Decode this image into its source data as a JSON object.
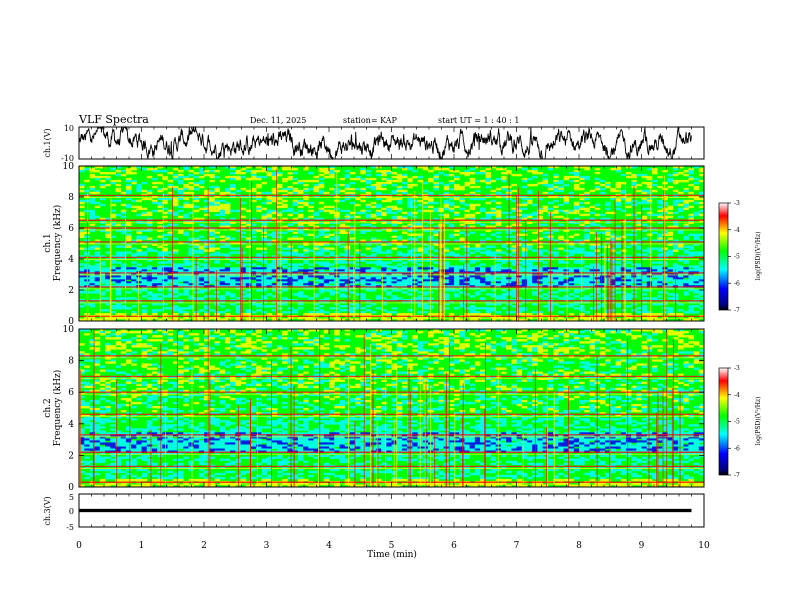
{
  "header": {
    "title": "VLF Spectra",
    "date": "Dec. 11, 2025",
    "station": "station= KAP",
    "start": "start  UT =   1 : 40 : 1"
  },
  "colors": {
    "high": "#ff0000",
    "mid_high": "#ffff00",
    "mid": "#00ff00",
    "mid_low": "#00ffff",
    "low": "#0000ff"
  },
  "chart_data": [
    {
      "type": "line",
      "name": "ch1-waveform",
      "ylabel": "ch.1(V)",
      "ylim": [
        -10,
        10
      ],
      "yticks": [
        "10",
        "-10"
      ],
      "xlim": [
        0,
        10
      ],
      "series": [
        {
          "name": "ch.1",
          "mean": 0,
          "amplitude": 5,
          "duration_min": 9.8
        }
      ]
    },
    {
      "type": "heatmap",
      "name": "ch1-spectrogram",
      "ylabel": "ch.1",
      "ylabel2": "Frequency (kHz)",
      "ylim": [
        0,
        10
      ],
      "yticks": [
        "0",
        "2",
        "4",
        "6",
        "8",
        "10"
      ],
      "xlim": [
        0,
        10
      ],
      "colorbar": {
        "label": "log(PSD)(V²/Hz)",
        "range": [
          -7,
          -3
        ],
        "ticks": [
          "-3",
          "-4",
          "-5",
          "-6",
          "-7"
        ]
      },
      "strong_lines_khz": [
        0.3,
        1.3,
        2.2,
        3.1,
        4.1,
        5.1,
        6.0,
        6.5,
        8.1
      ]
    },
    {
      "type": "heatmap",
      "name": "ch2-spectrogram",
      "ylabel": "ch.2",
      "ylabel2": "Frequency (kHz)",
      "ylim": [
        0,
        10
      ],
      "yticks": [
        "0",
        "2",
        "4",
        "6",
        "8",
        "10"
      ],
      "xlim": [
        0,
        10
      ],
      "colorbar": {
        "label": "log(PSD)(V²/Hz)",
        "range": [
          -7,
          -3
        ],
        "ticks": [
          "-3",
          "-4",
          "-5",
          "-6",
          "-7"
        ]
      },
      "strong_lines_khz": [
        0.3,
        1.3,
        2.2,
        3.3,
        4.6,
        6.0,
        7.0,
        8.3
      ]
    },
    {
      "type": "line",
      "name": "ch3-waveform",
      "ylabel": "ch.3(V)",
      "ylim": [
        -5,
        5
      ],
      "yticks": [
        "5",
        "0",
        "-5"
      ],
      "xlim": [
        0,
        10
      ],
      "xlabel": "Time  (min)",
      "xticks": [
        "0",
        "1",
        "2",
        "3",
        "4",
        "5",
        "6",
        "7",
        "8",
        "9",
        "10"
      ],
      "series": [
        {
          "name": "ch.3",
          "mean": 0,
          "amplitude": 0.5,
          "duration_min": 9.8
        }
      ]
    }
  ]
}
